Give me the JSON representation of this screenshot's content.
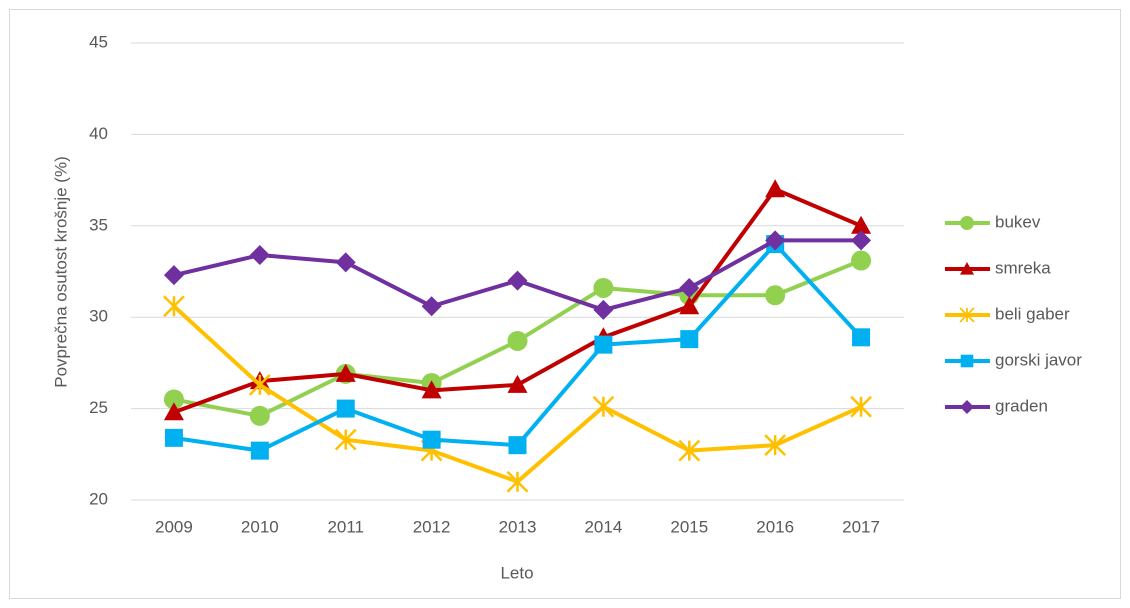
{
  "chart_data": {
    "type": "line",
    "x_label": "Leto",
    "y_label": "Povprečna osutost krošnje (%)",
    "categories": [
      "2009",
      "2010",
      "2011",
      "2012",
      "2013",
      "2014",
      "2015",
      "2016",
      "2017"
    ],
    "ylim": [
      20,
      45
    ],
    "yticks": [
      20,
      25,
      30,
      35,
      40,
      45
    ],
    "grid": true,
    "legend": "right",
    "series": [
      {
        "name": "bukev",
        "color": "#92d050",
        "marker": "circle",
        "values": [
          25.5,
          24.6,
          26.9,
          26.4,
          28.7,
          31.6,
          31.2,
          31.2,
          33.1
        ]
      },
      {
        "name": "smreka",
        "color": "#c00000",
        "marker": "triangle",
        "values": [
          24.8,
          26.5,
          26.9,
          26.0,
          26.3,
          28.9,
          30.6,
          37.0,
          35.0
        ]
      },
      {
        "name": "beli gaber",
        "color": "#ffc000",
        "marker": "star",
        "values": [
          30.6,
          26.3,
          23.3,
          22.7,
          21.0,
          25.1,
          22.7,
          23.0,
          25.1
        ]
      },
      {
        "name": "gorski javor",
        "color": "#00b0f0",
        "marker": "square",
        "values": [
          23.4,
          22.7,
          25.0,
          23.3,
          23.0,
          28.5,
          28.8,
          34.0,
          28.9
        ]
      },
      {
        "name": "graden",
        "color": "#7030a0",
        "marker": "diamond",
        "values": [
          32.3,
          33.4,
          33.0,
          30.6,
          32.0,
          30.4,
          31.6,
          34.2,
          34.2
        ]
      }
    ]
  }
}
